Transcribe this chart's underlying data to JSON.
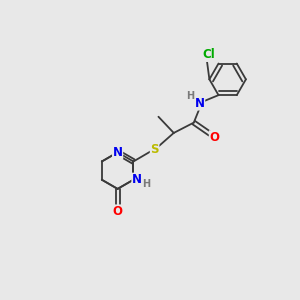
{
  "bg_color": "#e8e8e8",
  "bond_color": "#3a3a3a",
  "atom_colors": {
    "N": "#0000ee",
    "O": "#ff0000",
    "S": "#bbbb00",
    "Cl": "#00aa00",
    "H_label": "#7a7a7a",
    "C": "#3a3a3a"
  },
  "font_size_atom": 8.5,
  "font_size_small": 7.0
}
